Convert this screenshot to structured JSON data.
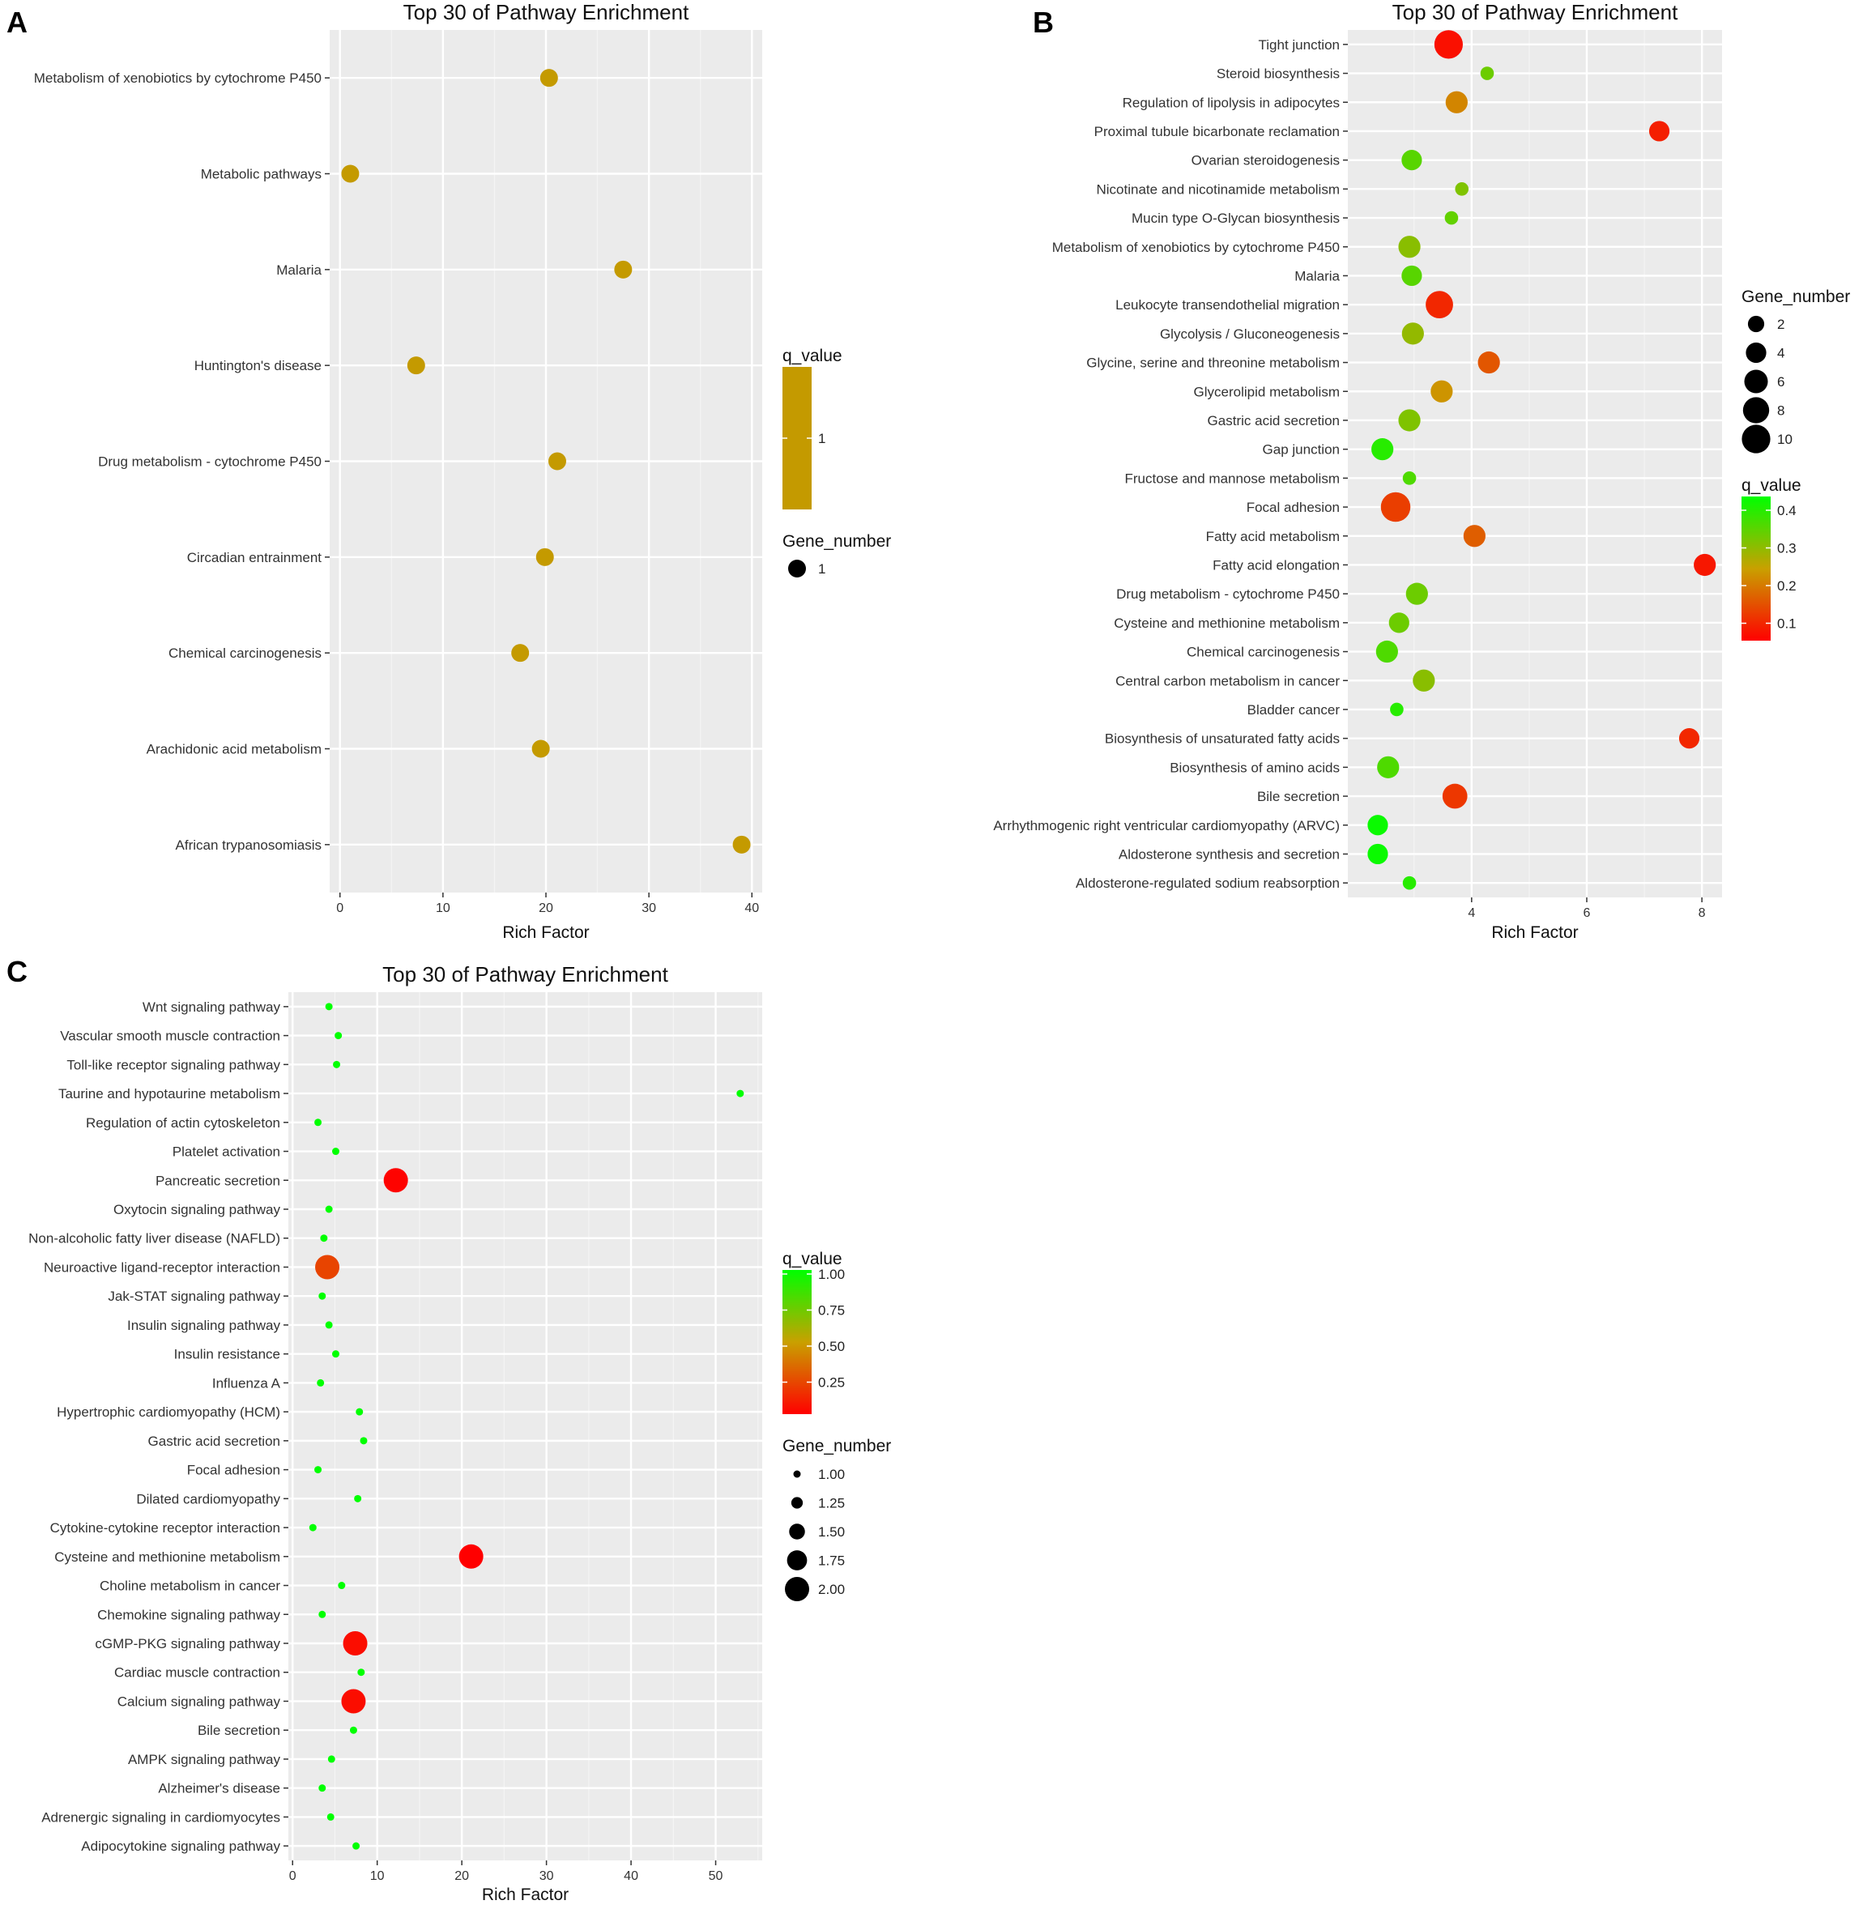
{
  "panels": [
    "A",
    "B",
    "C"
  ],
  "chart_data": [
    {
      "type": "scatter",
      "panel": "A",
      "title": "Top 30 of Pathway Enrichment",
      "xlabel": "Rich Factor",
      "ylabel": "",
      "xlim": [
        -1,
        41
      ],
      "xticks": [
        0,
        10,
        20,
        30,
        40
      ],
      "grid": true,
      "points": [
        {
          "label": "Metabolism of xenobiotics by cytochrome P450",
          "x": 20.3,
          "gene_number": 1,
          "q_value": 1
        },
        {
          "label": "Metabolic pathways",
          "x": 1.0,
          "gene_number": 1,
          "q_value": 1
        },
        {
          "label": "Malaria",
          "x": 27.5,
          "gene_number": 1,
          "q_value": 1
        },
        {
          "label": "Huntington's disease",
          "x": 7.4,
          "gene_number": 1,
          "q_value": 1
        },
        {
          "label": "Drug metabolism - cytochrome P450",
          "x": 21.1,
          "gene_number": 1,
          "q_value": 1
        },
        {
          "label": "Circadian entrainment",
          "x": 19.9,
          "gene_number": 1,
          "q_value": 1
        },
        {
          "label": "Chemical carcinogenesis",
          "x": 17.5,
          "gene_number": 1,
          "q_value": 1
        },
        {
          "label": "Arachidonic acid metabolism",
          "x": 19.5,
          "gene_number": 1,
          "q_value": 1
        },
        {
          "label": "African trypanosomiasis",
          "x": 39.0,
          "gene_number": 1,
          "q_value": 1
        }
      ],
      "legend": {
        "color_title": "q_value",
        "color_ticks": [
          "1"
        ],
        "size_title": "Gene_number",
        "size_ticks": [
          "1"
        ],
        "placement": "right"
      }
    },
    {
      "type": "scatter",
      "panel": "B",
      "title": "Top 30 of Pathway Enrichment",
      "xlabel": "Rich Factor",
      "ylabel": "",
      "xlim": [
        1.85,
        8.35
      ],
      "xticks": [
        4,
        6,
        8
      ],
      "grid": true,
      "points": [
        {
          "label": "Tight junction",
          "x": 3.6,
          "gene_number": 10,
          "q_value": 0.07
        },
        {
          "label": "Steroid biosynthesis",
          "x": 4.27,
          "gene_number": 1,
          "q_value": 0.35
        },
        {
          "label": "Regulation of lipolysis in adipocytes",
          "x": 3.74,
          "gene_number": 5,
          "q_value": 0.22
        },
        {
          "label": "Proximal tubule bicarbonate reclamation",
          "x": 7.26,
          "gene_number": 4,
          "q_value": 0.09
        },
        {
          "label": "Ovarian steroidogenesis",
          "x": 2.96,
          "gene_number": 4,
          "q_value": 0.37
        },
        {
          "label": "Nicotinate and nicotinamide metabolism",
          "x": 3.83,
          "gene_number": 1,
          "q_value": 0.33
        },
        {
          "label": "Mucin type O-Glycan biosynthesis",
          "x": 3.65,
          "gene_number": 1,
          "q_value": 0.36
        },
        {
          "label": "Metabolism of xenobiotics by cytochrome P450",
          "x": 2.92,
          "gene_number": 5,
          "q_value": 0.32
        },
        {
          "label": "Malaria",
          "x": 2.96,
          "gene_number": 4,
          "q_value": 0.37
        },
        {
          "label": "Leukocyte transendothelial migration",
          "x": 3.44,
          "gene_number": 9,
          "q_value": 0.1
        },
        {
          "label": "Glycolysis / Gluconeogenesis",
          "x": 2.98,
          "gene_number": 5,
          "q_value": 0.31
        },
        {
          "label": "Glycine, serine and threonine metabolism",
          "x": 4.3,
          "gene_number": 5,
          "q_value": 0.16
        },
        {
          "label": "Glycerolipid metabolism",
          "x": 3.48,
          "gene_number": 5,
          "q_value": 0.24
        },
        {
          "label": "Gastric acid secretion",
          "x": 2.92,
          "gene_number": 5,
          "q_value": 0.33
        },
        {
          "label": "Gap junction",
          "x": 2.45,
          "gene_number": 5,
          "q_value": 0.42
        },
        {
          "label": "Fructose and mannose metabolism",
          "x": 2.92,
          "gene_number": 1,
          "q_value": 0.38
        },
        {
          "label": "Focal adhesion",
          "x": 2.68,
          "gene_number": 11,
          "q_value": 0.13
        },
        {
          "label": "Fatty acid metabolism",
          "x": 4.05,
          "gene_number": 5,
          "q_value": 0.17
        },
        {
          "label": "Fatty acid elongation",
          "x": 8.05,
          "gene_number": 5,
          "q_value": 0.08
        },
        {
          "label": "Drug metabolism - cytochrome P450",
          "x": 3.05,
          "gene_number": 5,
          "q_value": 0.35
        },
        {
          "label": "Cysteine and methionine metabolism",
          "x": 2.74,
          "gene_number": 4,
          "q_value": 0.35
        },
        {
          "label": "Chemical carcinogenesis",
          "x": 2.53,
          "gene_number": 5,
          "q_value": 0.38
        },
        {
          "label": "Central carbon metabolism in cancer",
          "x": 3.17,
          "gene_number": 5,
          "q_value": 0.32
        },
        {
          "label": "Bladder cancer",
          "x": 2.7,
          "gene_number": 1,
          "q_value": 0.42
        },
        {
          "label": "Biosynthesis of unsaturated fatty acids",
          "x": 7.78,
          "gene_number": 4,
          "q_value": 0.1
        },
        {
          "label": "Biosynthesis of amino acids",
          "x": 2.55,
          "gene_number": 5,
          "q_value": 0.38
        },
        {
          "label": "Bile secretion",
          "x": 3.71,
          "gene_number": 7,
          "q_value": 0.12
        },
        {
          "label": "Arrhythmogenic right ventricular cardiomyopathy (ARVC)",
          "x": 2.37,
          "gene_number": 4,
          "q_value": 0.45
        },
        {
          "label": "Aldosterone synthesis and secretion",
          "x": 2.37,
          "gene_number": 4,
          "q_value": 0.45
        },
        {
          "label": "Aldosterone-regulated sodium reabsorption",
          "x": 2.92,
          "gene_number": 1,
          "q_value": 0.42
        }
      ],
      "legend": {
        "size_title": "Gene_number",
        "size_ticks": [
          "2",
          "4",
          "6",
          "8",
          "10"
        ],
        "color_title": "q_value",
        "color_ticks": [
          "0.4",
          "0.3",
          "0.2",
          "0.1"
        ],
        "placement": "right"
      }
    },
    {
      "type": "scatter",
      "panel": "C",
      "title": "Top 30 of Pathway Enrichment",
      "xlabel": "Rich Factor",
      "ylabel": "",
      "xlim": [
        -0.5,
        55.5
      ],
      "xticks": [
        0,
        10,
        20,
        30,
        40,
        50
      ],
      "grid": true,
      "points": [
        {
          "label": "Wnt signaling pathway",
          "x": 4.3,
          "gene_number": 1,
          "q_value": 1.0
        },
        {
          "label": "Vascular smooth muscle contraction",
          "x": 5.4,
          "gene_number": 1,
          "q_value": 1.0
        },
        {
          "label": "Toll-like receptor signaling pathway",
          "x": 5.2,
          "gene_number": 1,
          "q_value": 1.0
        },
        {
          "label": "Taurine and hypotaurine metabolism",
          "x": 52.9,
          "gene_number": 1,
          "q_value": 1.0
        },
        {
          "label": "Regulation of actin cytoskeleton",
          "x": 3.0,
          "gene_number": 1,
          "q_value": 1.0
        },
        {
          "label": "Platelet activation",
          "x": 5.1,
          "gene_number": 1,
          "q_value": 1.0
        },
        {
          "label": "Pancreatic secretion",
          "x": 12.2,
          "gene_number": 2,
          "q_value": 0.02
        },
        {
          "label": "Oxytocin signaling pathway",
          "x": 4.3,
          "gene_number": 1,
          "q_value": 1.0
        },
        {
          "label": "Non-alcoholic fatty liver disease (NAFLD)",
          "x": 3.7,
          "gene_number": 1,
          "q_value": 1.0
        },
        {
          "label": "Neuroactive ligand-receptor interaction",
          "x": 4.1,
          "gene_number": 2,
          "q_value": 0.22
        },
        {
          "label": "Jak-STAT signaling pathway",
          "x": 3.5,
          "gene_number": 1,
          "q_value": 1.0
        },
        {
          "label": "Insulin signaling pathway",
          "x": 4.3,
          "gene_number": 1,
          "q_value": 1.0
        },
        {
          "label": "Insulin resistance",
          "x": 5.1,
          "gene_number": 1,
          "q_value": 1.0
        },
        {
          "label": "Influenza A",
          "x": 3.3,
          "gene_number": 1,
          "q_value": 1.0
        },
        {
          "label": "Hypertrophic cardiomyopathy (HCM)",
          "x": 7.9,
          "gene_number": 1,
          "q_value": 1.0
        },
        {
          "label": "Gastric acid secretion",
          "x": 8.4,
          "gene_number": 1,
          "q_value": 1.0
        },
        {
          "label": "Focal adhesion",
          "x": 3.0,
          "gene_number": 1,
          "q_value": 1.0
        },
        {
          "label": "Dilated cardiomyopathy",
          "x": 7.7,
          "gene_number": 1,
          "q_value": 1.0
        },
        {
          "label": "Cytokine-cytokine receptor interaction",
          "x": 2.4,
          "gene_number": 1,
          "q_value": 1.0
        },
        {
          "label": "Cysteine and methionine metabolism",
          "x": 21.1,
          "gene_number": 2,
          "q_value": 0.01
        },
        {
          "label": "Choline metabolism in cancer",
          "x": 5.8,
          "gene_number": 1,
          "q_value": 1.0
        },
        {
          "label": "Chemokine signaling pathway",
          "x": 3.5,
          "gene_number": 1,
          "q_value": 1.0
        },
        {
          "label": "cGMP-PKG signaling pathway",
          "x": 7.4,
          "gene_number": 2,
          "q_value": 0.05
        },
        {
          "label": "Cardiac muscle contraction",
          "x": 8.1,
          "gene_number": 1,
          "q_value": 1.0
        },
        {
          "label": "Calcium signaling pathway",
          "x": 7.2,
          "gene_number": 2,
          "q_value": 0.05
        },
        {
          "label": "Bile secretion",
          "x": 7.2,
          "gene_number": 1,
          "q_value": 1.0
        },
        {
          "label": "AMPK signaling pathway",
          "x": 4.6,
          "gene_number": 1,
          "q_value": 1.0
        },
        {
          "label": "Alzheimer's disease",
          "x": 3.5,
          "gene_number": 1,
          "q_value": 1.0
        },
        {
          "label": "Adrenergic signaling in cardiomyocytes",
          "x": 4.5,
          "gene_number": 1,
          "q_value": 1.0
        },
        {
          "label": "Adipocytokine signaling pathway",
          "x": 7.5,
          "gene_number": 1,
          "q_value": 1.0
        }
      ],
      "legend": {
        "color_title": "q_value",
        "color_ticks": [
          "1.00",
          "0.75",
          "0.50",
          "0.25"
        ],
        "size_title": "Gene_number",
        "size_ticks": [
          "1.00",
          "1.25",
          "1.50",
          "1.75",
          "2.00"
        ],
        "placement": "right"
      }
    }
  ],
  "colors": {
    "panel_bg": "#ebebeb",
    "grid_major": "#ffffff",
    "grid_minor": "#f4f4f4",
    "high": "#00ff00",
    "mid": "#c9a000",
    "low": "#ff0000",
    "single_q": "#c49a00",
    "legend_dot": "#000000"
  }
}
